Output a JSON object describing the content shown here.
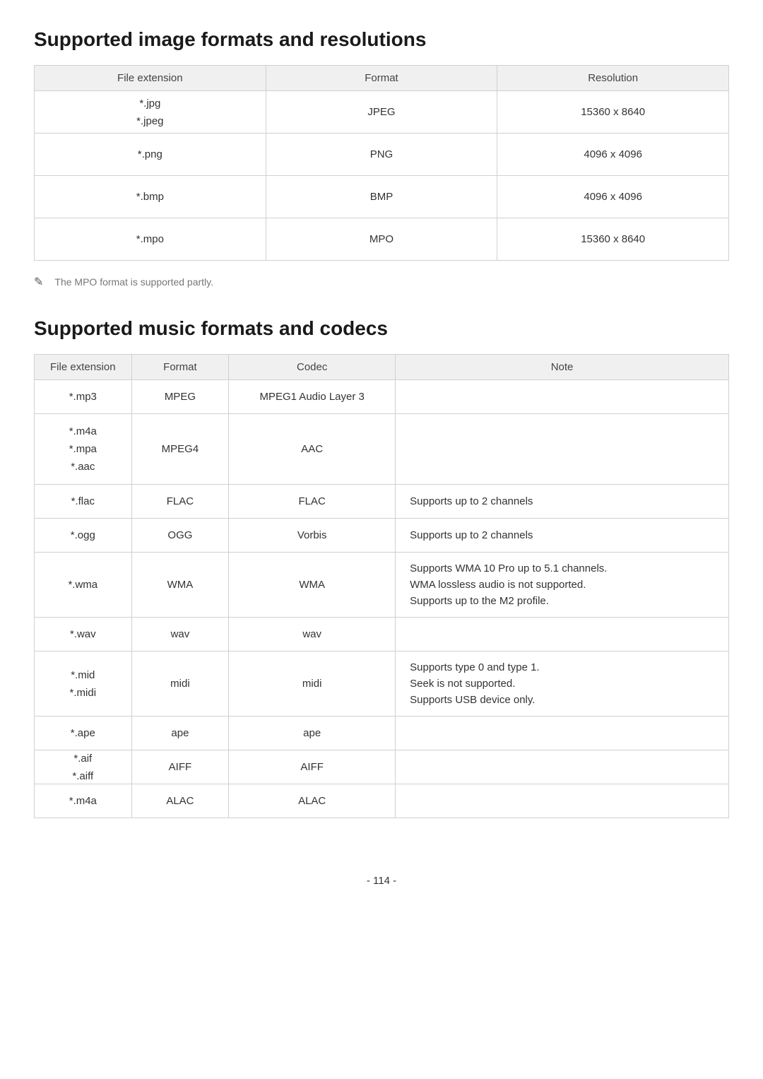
{
  "section1": {
    "heading": "Supported image formats and resolutions",
    "columns": [
      "File extension",
      "Format",
      "Resolution"
    ],
    "rows": [
      {
        "ext": [
          "*.jpg",
          "*.jpeg"
        ],
        "format": "JPEG",
        "resolution": "15360 x 8640"
      },
      {
        "ext": [
          "*.png"
        ],
        "format": "PNG",
        "resolution": "4096 x 4096"
      },
      {
        "ext": [
          "*.bmp"
        ],
        "format": "BMP",
        "resolution": "4096 x 4096"
      },
      {
        "ext": [
          "*.mpo"
        ],
        "format": "MPO",
        "resolution": "15360 x 8640"
      }
    ],
    "footnote": "The MPO format is supported partly."
  },
  "section2": {
    "heading": "Supported music formats and codecs",
    "columns": [
      "File extension",
      "Format",
      "Codec",
      "Note"
    ],
    "rows": [
      {
        "ext": [
          "*.mp3"
        ],
        "format": "MPEG",
        "codec": "MPEG1 Audio Layer 3",
        "note": []
      },
      {
        "ext": [
          "*.m4a",
          "*.mpa",
          "*.aac"
        ],
        "format": "MPEG4",
        "codec": "AAC",
        "note": []
      },
      {
        "ext": [
          "*.flac"
        ],
        "format": "FLAC",
        "codec": "FLAC",
        "note": [
          "Supports up to 2 channels"
        ]
      },
      {
        "ext": [
          "*.ogg"
        ],
        "format": "OGG",
        "codec": "Vorbis",
        "note": [
          "Supports up to 2 channels"
        ]
      },
      {
        "ext": [
          "*.wma"
        ],
        "format": "WMA",
        "codec": "WMA",
        "note": [
          "Supports WMA 10 Pro up to 5.1 channels.",
          "WMA lossless audio is not supported.",
          "Supports up to the M2 profile."
        ]
      },
      {
        "ext": [
          "*.wav"
        ],
        "format": "wav",
        "codec": "wav",
        "note": []
      },
      {
        "ext": [
          "*.mid",
          "*.midi"
        ],
        "format": "midi",
        "codec": "midi",
        "note": [
          "Supports type 0 and type 1.",
          "Seek is not supported.",
          "Supports USB device only."
        ]
      },
      {
        "ext": [
          "*.ape"
        ],
        "format": "ape",
        "codec": "ape",
        "note": []
      },
      {
        "ext": [
          "*.aif",
          "*.aiff"
        ],
        "format": "AIFF",
        "codec": "AIFF",
        "note": []
      },
      {
        "ext": [
          "*.m4a"
        ],
        "format": "ALAC",
        "codec": "ALAC",
        "note": []
      }
    ]
  },
  "page_number": "- 114 -",
  "colors": {
    "header_bg": "#f0f0f0",
    "border": "#d0d0d0",
    "text": "#333333",
    "footnote": "#777777"
  }
}
